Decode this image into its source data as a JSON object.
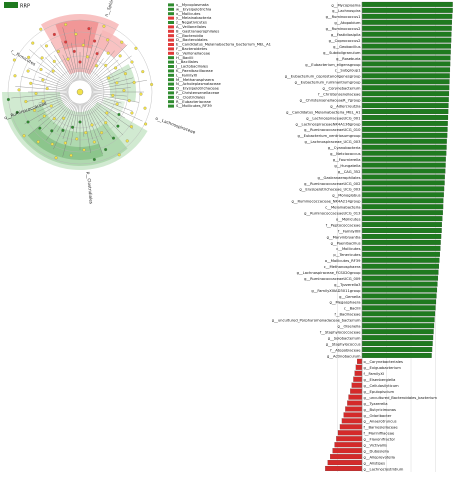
{
  "legend": {
    "groups": [
      {
        "label": "RRP",
        "color": "#1f7a1f"
      }
    ]
  },
  "cladogram": {
    "colors": {
      "red": "#e03a3a",
      "green": "#2e8b2e",
      "red_shade": "#f7b7b7",
      "green_shade": "#c9e6c9"
    },
    "key_entries": [
      "v__Mycoplasmata",
      "w__Erysipelotrichia",
      "x__Mollicutes",
      "y__Melainabacteria",
      "z__Negativicutes",
      "A__Veillonellales",
      "B__Gastranaerophilales",
      "C__Bacteroidia",
      "D__Bacteroidales",
      "E__Candidatus_Melainabacteria_bacterium_MEL_A1",
      "F__Bacteroidetes",
      "G__Veillonellaceae",
      "H__Bacilli",
      "I__Bacillales",
      "J__Lactobacillales",
      "K__Paenibacillaceae",
      "L__FamilyXI",
      "M__Methanosphaera",
      "N__Acholeplasmataceae",
      "O__Erysipelotrichaceae",
      "P__Christensenellaceae",
      "Q__Clostridiales",
      "R__Eubacteriaceae",
      "S__Mollicutes_RF39"
    ],
    "ring_labels": [
      "n__Sphingomonadaceae",
      "o__Lachnospiraceae",
      "p__Clostridiales",
      "q__Ruminococcaceae",
      "r__Firmicutes"
    ]
  },
  "chart_data": {
    "type": "bar",
    "orientation": "horizontal",
    "categories": [
      "g__Mycoplasma",
      "g__Lachnospira",
      "g__Ruminococcus1",
      "g__Atopobium",
      "g__Ruminococcus2",
      "g__Fastidiosipila",
      "g__Coprococcus2",
      "g__Geobacillus",
      "g__Subdoligranulum",
      "g__Roseburia",
      "g__Eubacterium_eligensgroup",
      "c__Subgroup1",
      "g__Eubacterium_coprostanoligenesgroup",
      "g__Eubacterium_ruminantiumgroup",
      "g__Corynebacterium",
      "f__Christensenellaceae",
      "g__ChristensenellaceaeR_7group",
      "g__Adlercreutzia",
      "g__Candidatus_Melainabacteria_MEL_A1",
      "g__LachnospiraceaeUCG_001",
      "g__LachnospiraceaeNK4A136group",
      "g__RuminococcaceaeUCG_010",
      "g__Eubacterium_ventriosumgroup",
      "g__Lachnospiraceae_UCG_003",
      "g__Cyanobacteria",
      "g__Netciococcus",
      "g__Fournierella",
      "g__Hungatella",
      "g__CAG_352",
      "g__Gastranaerophilales",
      "g__RuminococcaceaeUCG_002",
      "g__Erysipelotrichaceae_UCG_003",
      "g__Monoglobus",
      "g__Ruminococcaceae_NK4A214group",
      "c__Melainabacteria",
      "g__RuminococcaceaeUCG_013",
      "o__Mollicutes",
      "f__Peptococcaceae",
      "f__FamilyXIII",
      "g__Marvinbryantia",
      "g__Paenibacillus",
      "c__Mollicutes",
      "p__Tenericutes",
      "o__Mollicutes_RF39",
      "c__Methanosphaera",
      "g__Lachnospiraceae_FCS020group",
      "g__RuminococcaceaeUCG_009",
      "g__Tyzzerella3",
      "g__FamilyXIIIAD3011group",
      "g__Gemella",
      "g__Megasphaera",
      "c__Bacilli",
      "f__Bacillaceae",
      "g__uncultured_Porphyromonadaceae_bacterium",
      "g__Olsenella",
      "f__Staphylococcaceae",
      "g__Solobacterium",
      "g__Staphylococcus",
      "f__Atopobiaceae",
      "g__Actinobaculum",
      "o__Corynebacteriales",
      "g__Exiguobacterium",
      "f__FamilyXI",
      "g__Eisenbergiella",
      "g__Cellulosilyticum",
      "g__Epulopiscium",
      "g__uncultured_Bacteroidales_bacterium",
      "g__Tyzzerella",
      "g__Butyricimonas",
      "g__Odoribacter",
      "g__Anaerotruncus",
      "f__Barnesiellaceae",
      "f__Marinifilaceae",
      "g__Flavonifractor",
      "g__Victivallis",
      "g__Dubosiella",
      "g__Alloprevotella",
      "g__Alistipes",
      "g__Lachnoclostridium"
    ],
    "values": [
      3.7,
      3.7,
      3.68,
      3.67,
      3.66,
      3.65,
      3.64,
      3.63,
      3.62,
      3.61,
      3.6,
      3.59,
      3.58,
      3.57,
      3.56,
      3.55,
      3.54,
      3.53,
      3.52,
      3.51,
      3.5,
      3.49,
      3.48,
      3.46,
      3.45,
      3.44,
      3.42,
      3.41,
      3.4,
      3.38,
      3.37,
      3.35,
      3.34,
      3.32,
      3.31,
      3.3,
      3.28,
      3.26,
      3.25,
      3.23,
      3.21,
      3.2,
      3.18,
      3.16,
      3.14,
      3.12,
      3.1,
      3.08,
      3.06,
      3.04,
      3.02,
      3.0,
      2.98,
      2.96,
      2.94,
      2.92,
      2.9,
      2.88,
      2.86,
      2.84,
      -0.2,
      -0.25,
      -0.3,
      -0.35,
      -0.42,
      -0.48,
      -0.55,
      -0.6,
      -0.68,
      -0.75,
      -0.82,
      -0.9,
      -0.98,
      -1.05,
      -1.12,
      -1.2,
      -1.3,
      -1.4,
      -1.5
    ],
    "series": [
      {
        "name": "RRP",
        "color": "#1f7a1f"
      },
      {
        "name": "",
        "color": "#d42a2a"
      }
    ],
    "xlabel": "",
    "ylabel": "",
    "grid": true,
    "xlim": [
      -1.8,
      4.0
    ]
  }
}
